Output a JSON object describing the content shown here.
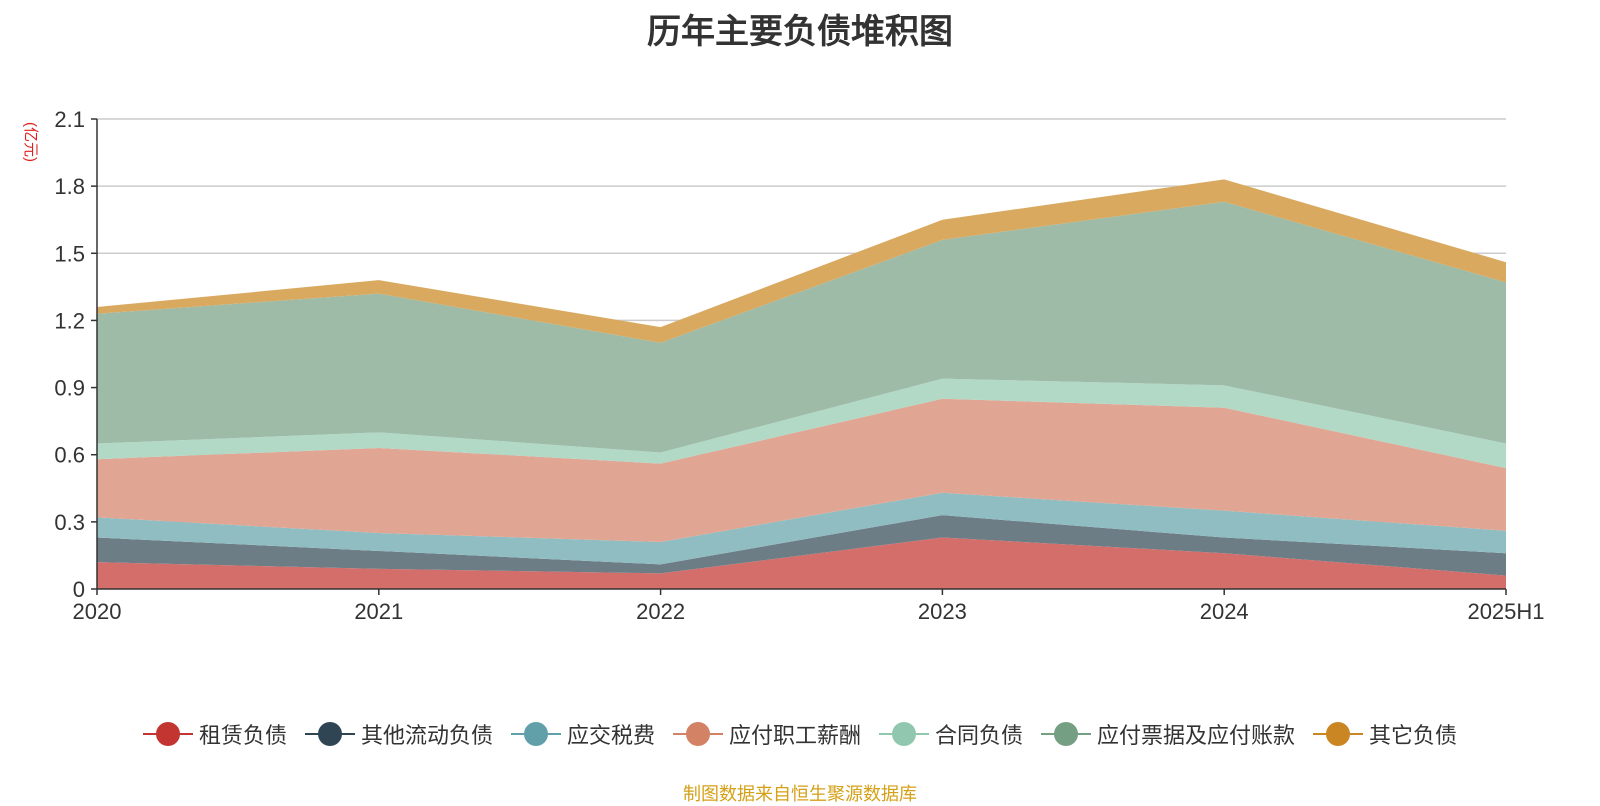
{
  "chart_data": {
    "type": "area",
    "title": "历年主要负债堆积图",
    "unit": "(亿元)",
    "categories": [
      "2020",
      "2021",
      "2022",
      "2023",
      "2024",
      "2025H1"
    ],
    "ylim": [
      0,
      2.1
    ],
    "yticks": [
      "0",
      "0.3",
      "0.6",
      "0.9",
      "1.2",
      "1.5",
      "1.8",
      "2.1"
    ],
    "ytick_values": [
      0,
      0.3,
      0.6,
      0.9,
      1.2,
      1.5,
      1.8,
      2.1
    ],
    "grid": true,
    "legend_position": "bottom",
    "stacked": true,
    "series": [
      {
        "name": "租赁负债",
        "color": "#c23531",
        "area_color": "#d46e6b",
        "values": [
          0.12,
          0.09,
          0.07,
          0.23,
          0.16,
          0.06
        ]
      },
      {
        "name": "其他流动负债",
        "color": "#2f4554",
        "area_color": "#6d7d86",
        "values": [
          0.11,
          0.08,
          0.04,
          0.1,
          0.07,
          0.1
        ]
      },
      {
        "name": "应交税费",
        "color": "#61a0a8",
        "area_color": "#90bdc2",
        "values": [
          0.09,
          0.08,
          0.1,
          0.1,
          0.12,
          0.1
        ]
      },
      {
        "name": "应付职工薪酬",
        "color": "#d48265",
        "area_color": "#e0a693",
        "values": [
          0.26,
          0.38,
          0.35,
          0.42,
          0.46,
          0.28
        ]
      },
      {
        "name": "合同负债",
        "color": "#91c7ae",
        "area_color": "#b2d8c6",
        "values": [
          0.07,
          0.07,
          0.05,
          0.09,
          0.1,
          0.11
        ]
      },
      {
        "name": "应付票据及应付账款",
        "color": "#749f83",
        "area_color": "#9dbba7",
        "values": [
          0.58,
          0.62,
          0.49,
          0.62,
          0.82,
          0.72
        ]
      },
      {
        "name": "其它负债",
        "color": "#ca8622",
        "area_color": "#d9a960",
        "values": [
          0.03,
          0.06,
          0.07,
          0.09,
          0.1,
          0.09
        ]
      }
    ]
  },
  "source_note": "制图数据来自恒生聚源数据库"
}
